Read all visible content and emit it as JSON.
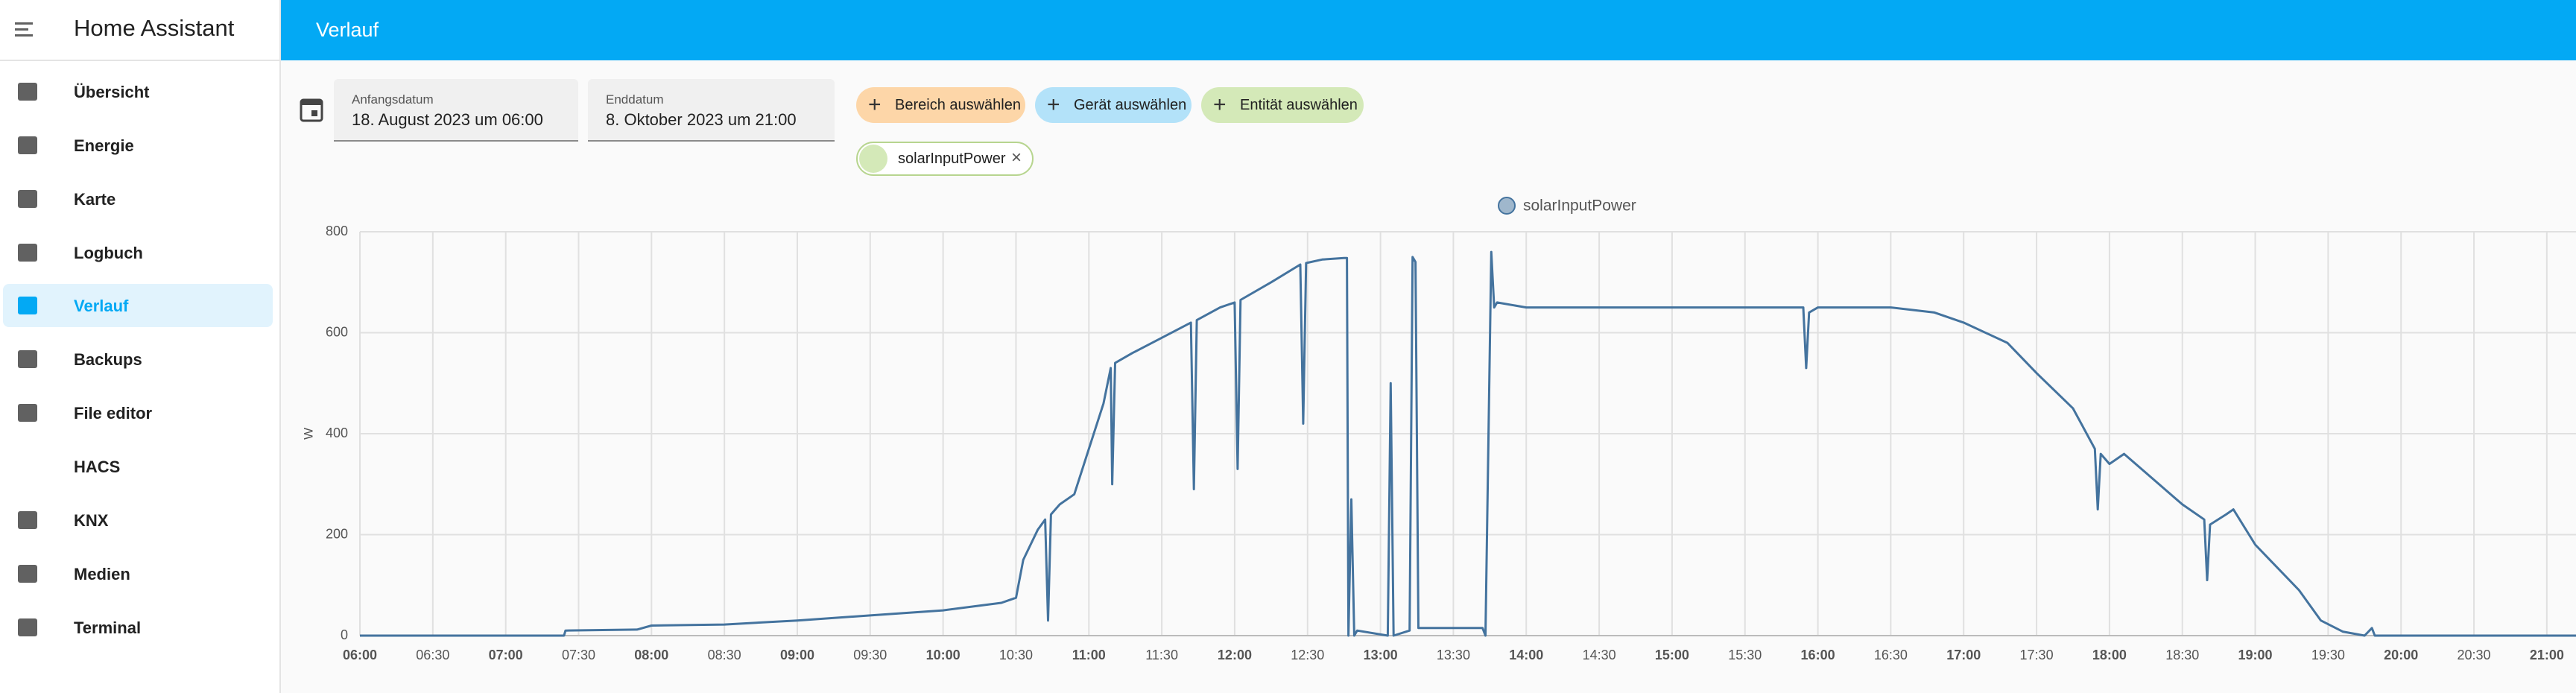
{
  "sidebar": {
    "title": "Home Assistant",
    "items": [
      "Übersicht",
      "Energie",
      "Karte",
      "Logbuch",
      "Verlauf",
      "Backups",
      "File editor",
      "HACS",
      "KNX",
      "Medien",
      "Terminal"
    ]
  },
  "header": {
    "title": "Verlauf"
  },
  "date_range": {
    "start_label": "Anfangsdatum",
    "start": "18. August 2023 um 06:00",
    "end_label": "Enddatum",
    "end": "8. Oktober 2023 um 21:00"
  },
  "target_chips": [
    "Bereich auswählen",
    "Gerät auswählen",
    "Entität auswählen"
  ],
  "selected_entity": "solarInputPower",
  "chart_data": {
    "type": "line",
    "y_label": "W",
    "x": [
      6,
      7.4,
      7.41,
      7.9,
      8.0,
      8.5,
      9.0,
      9.5,
      10.0,
      10.4,
      10.45,
      10.5,
      10.55,
      10.6,
      10.65,
      10.7,
      10.72,
      10.74,
      10.8,
      10.9,
      11.0,
      11.1,
      11.15,
      11.16,
      11.18,
      11.3,
      11.5,
      11.7,
      11.72,
      11.74,
      11.9,
      12.0,
      12.02,
      12.04,
      12.25,
      12.45,
      12.47,
      12.49,
      12.6,
      12.75,
      12.77,
      12.78,
      12.8,
      12.82,
      12.84,
      13.05,
      13.07,
      13.09,
      13.2,
      13.22,
      13.24,
      13.26,
      13.7,
      13.72,
      13.76,
      13.78,
      13.8,
      14.0,
      15.0,
      15.9,
      15.92,
      15.94,
      16.0,
      16.5,
      16.8,
      17.0,
      17.3,
      17.5,
      17.75,
      17.9,
      17.92,
      17.94,
      18.0,
      18.1,
      18.3,
      18.5,
      18.65,
      18.67,
      18.69,
      18.8,
      18.85,
      19.0,
      19.3,
      19.45,
      19.6,
      19.75,
      19.8,
      19.82,
      19.84,
      21.2
    ],
    "series": [
      {
        "name": "solarInputPower",
        "color": "#44739e",
        "values": [
          0,
          0,
          10,
          12,
          20,
          22,
          30,
          40,
          50,
          65,
          70,
          75,
          150,
          180,
          210,
          230,
          30,
          240,
          260,
          280,
          370,
          460,
          530,
          300,
          540,
          560,
          590,
          620,
          290,
          625,
          650,
          660,
          330,
          665,
          700,
          735,
          420,
          738,
          745,
          748,
          748,
          0,
          270,
          0,
          10,
          0,
          500,
          0,
          10,
          750,
          740,
          15,
          15,
          0,
          760,
          650,
          660,
          650,
          650,
          650,
          530,
          640,
          650,
          650,
          640,
          620,
          580,
          520,
          450,
          370,
          250,
          360,
          340,
          360,
          310,
          260,
          230,
          110,
          220,
          240,
          250,
          180,
          90,
          30,
          8,
          0,
          15,
          0,
          0,
          0
        ]
      }
    ],
    "xlim": [
      6,
      21.2
    ],
    "ylim": [
      0,
      800
    ],
    "yticks": [
      0,
      200,
      400,
      600,
      800
    ],
    "xticks": [
      {
        "value": 6,
        "label": "06:00"
      },
      {
        "value": 6.5,
        "label": "06:30"
      },
      {
        "value": 7,
        "label": "07:00"
      },
      {
        "value": 7.5,
        "label": "07:30"
      },
      {
        "value": 8,
        "label": "08:00"
      },
      {
        "value": 8.5,
        "label": "08:30"
      },
      {
        "value": 9,
        "label": "09:00"
      },
      {
        "value": 9.5,
        "label": "09:30"
      },
      {
        "value": 10,
        "label": "10:00"
      },
      {
        "value": 10.5,
        "label": "10:30"
      },
      {
        "value": 11,
        "label": "11:00"
      },
      {
        "value": 11.5,
        "label": "11:30"
      },
      {
        "value": 12,
        "label": "12:00"
      },
      {
        "value": 12.5,
        "label": "12:30"
      },
      {
        "value": 13,
        "label": "13:00"
      },
      {
        "value": 13.5,
        "label": "13:30"
      },
      {
        "value": 14,
        "label": "14:00"
      },
      {
        "value": 14.5,
        "label": "14:30"
      },
      {
        "value": 15,
        "label": "15:00"
      },
      {
        "value": 15.5,
        "label": "15:30"
      },
      {
        "value": 16,
        "label": "16:00"
      },
      {
        "value": 16.5,
        "label": "16:30"
      },
      {
        "value": 17,
        "label": "17:00"
      },
      {
        "value": 17.5,
        "label": "17:30"
      },
      {
        "value": 18,
        "label": "18:00"
      },
      {
        "value": 18.5,
        "label": "18:30"
      },
      {
        "value": 19,
        "label": "19:00"
      },
      {
        "value": 19.5,
        "label": "19:30"
      },
      {
        "value": 20,
        "label": "20:00"
      },
      {
        "value": 20.5,
        "label": "20:30"
      },
      {
        "value": 21,
        "label": "21:00"
      }
    ],
    "grid": true
  }
}
